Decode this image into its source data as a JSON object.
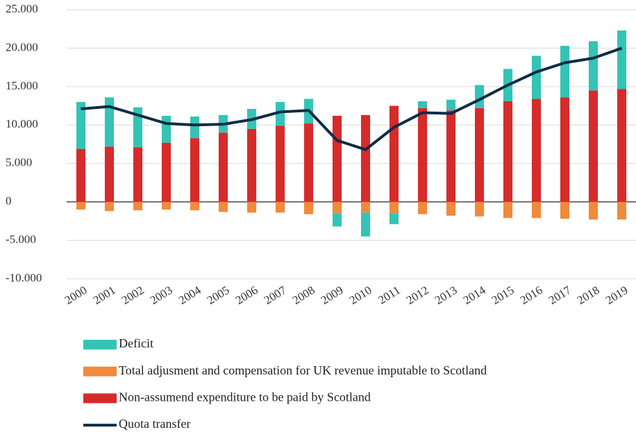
{
  "chart_data": {
    "type": "bar",
    "categories": [
      "2000",
      "2001",
      "2002",
      "2003",
      "2004",
      "2005",
      "2006",
      "2007",
      "2008",
      "2009",
      "2010",
      "2011",
      "2012",
      "2013",
      "2014",
      "2015",
      "2016",
      "2017",
      "2018",
      "2019"
    ],
    "series": [
      {
        "name": "Deficit",
        "type": "bar",
        "color": "#33c4b6",
        "values": [
          6100,
          6400,
          5200,
          3500,
          2800,
          2300,
          2600,
          3100,
          3200,
          -1700,
          -3100,
          -1400,
          900,
          1400,
          3000,
          4200,
          5600,
          6700,
          6400,
          7600
        ]
      },
      {
        "name": "Total adjusment and compensation for UK revenue imputable to Scotland",
        "type": "bar",
        "color": "#f08a3c",
        "values": [
          -1000,
          -1200,
          -1100,
          -1000,
          -1100,
          -1300,
          -1400,
          -1400,
          -1600,
          -1500,
          -1400,
          -1500,
          -1600,
          -1800,
          -1900,
          -2100,
          -2100,
          -2200,
          -2300,
          -2300
        ]
      },
      {
        "name": "Non-assumend expenditure to be paid by Scotland",
        "type": "bar",
        "color": "#d62b2b",
        "values": [
          6900,
          7200,
          7100,
          7700,
          8300,
          9000,
          9500,
          9900,
          10200,
          11200,
          11300,
          12500,
          12200,
          11900,
          12200,
          13100,
          13400,
          13600,
          14500,
          14700
        ]
      },
      {
        "name": "Quota transfer",
        "type": "line",
        "color": "#0d2c45",
        "values": [
          12100,
          12400,
          11300,
          10200,
          10000,
          10100,
          10700,
          11700,
          11900,
          8000,
          6800,
          9700,
          11600,
          11500,
          13300,
          15200,
          16900,
          18100,
          18700,
          20000
        ]
      }
    ],
    "ylim": [
      -10000,
      25000
    ],
    "yticks": [
      {
        "value": -10000,
        "label": "-10.000"
      },
      {
        "value": -5000,
        "label": "-5.000"
      },
      0,
      {
        "value": 5000,
        "label": "5.000"
      },
      {
        "value": 10000,
        "label": "10.000"
      },
      {
        "value": 15000,
        "label": "15.000"
      },
      {
        "value": 20000,
        "label": "20.000"
      },
      {
        "value": 25000,
        "label": "25.000"
      }
    ],
    "grid": true
  }
}
